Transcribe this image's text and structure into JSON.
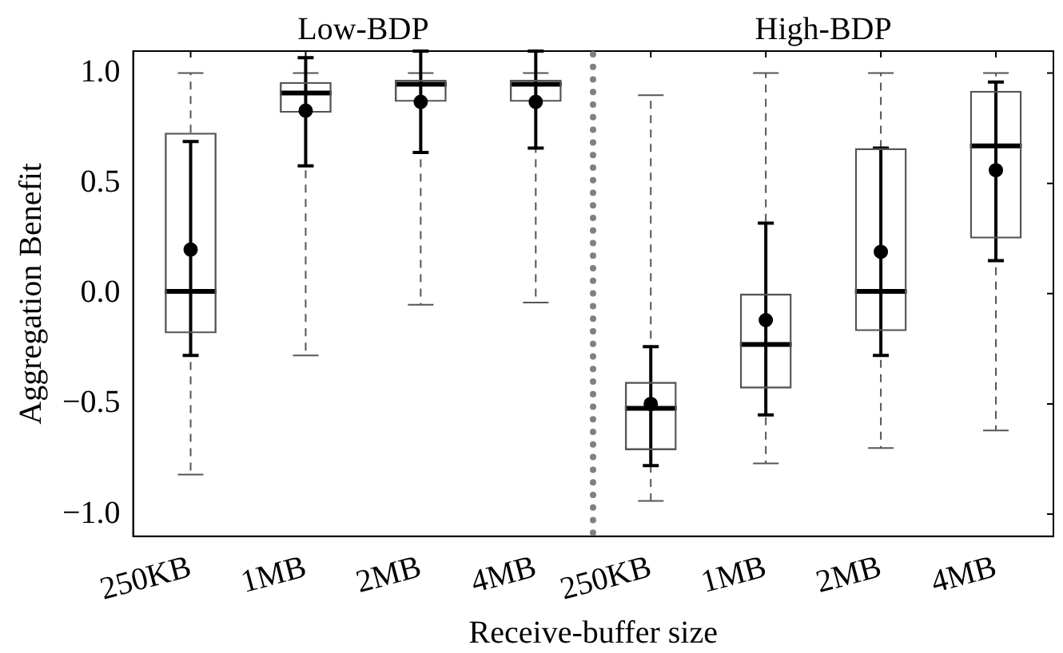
{
  "chart_data": {
    "type": "box",
    "xlabel": "Receive-buffer size",
    "ylabel": "Aggregation Benefit",
    "categories": [
      "250KB",
      "1MB",
      "2MB",
      "4MB",
      "250KB",
      "1MB",
      "2MB",
      "4MB"
    ],
    "ylim": [
      -1.1,
      1.1
    ],
    "yticks": [
      {
        "value": -1,
        "label": "−1.0"
      },
      {
        "value": -0.5,
        "label": "−0.5"
      },
      {
        "value": 0,
        "label": "0.0"
      },
      {
        "value": 0.5,
        "label": "0.5"
      },
      {
        "value": 1,
        "label": "1.0"
      }
    ],
    "annotations": [
      "Low-BDP",
      "High-BDP"
    ],
    "marker": "circle",
    "series": [
      {
        "color": "#555555",
        "boxes": [
          {
            "low": -0.82,
            "q1": -0.18,
            "median": 0.01,
            "q3": 0.73,
            "high": 1.0
          },
          {
            "low": -0.28,
            "q1": 0.82,
            "median": 0.91,
            "q3": 0.96,
            "high": 1.0
          },
          {
            "low": -0.05,
            "q1": 0.87,
            "median": 0.95,
            "q3": 0.97,
            "high": 1.0
          },
          {
            "low": -0.04,
            "q1": 0.87,
            "median": 0.95,
            "q3": 0.97,
            "high": 1.0
          },
          {
            "low": -0.94,
            "q1": -0.71,
            "median": -0.52,
            "q3": -0.4,
            "high": 0.9
          },
          {
            "low": -0.77,
            "q1": -0.43,
            "median": -0.23,
            "q3": 0.0,
            "high": 1.0
          },
          {
            "low": -0.7,
            "q1": -0.17,
            "median": 0.01,
            "q3": 0.66,
            "high": 1.0
          },
          {
            "low": -0.62,
            "q1": 0.25,
            "median": 0.67,
            "q3": 0.92,
            "high": 1.0
          }
        ]
      },
      {
        "type": "scatter",
        "color": "#000000",
        "values": [
          0.2,
          0.83,
          0.87,
          0.87,
          -0.5,
          -0.12,
          0.19,
          0.56
        ],
        "errors": [
          [
            -0.28,
            0.69
          ],
          [
            0.58,
            1.07
          ],
          [
            0.64,
            1.1
          ],
          [
            0.66,
            1.1
          ],
          [
            -0.78,
            -0.24
          ],
          [
            -0.55,
            0.32
          ],
          [
            -0.28,
            0.66
          ],
          [
            0.15,
            0.96
          ]
        ]
      }
    ]
  }
}
